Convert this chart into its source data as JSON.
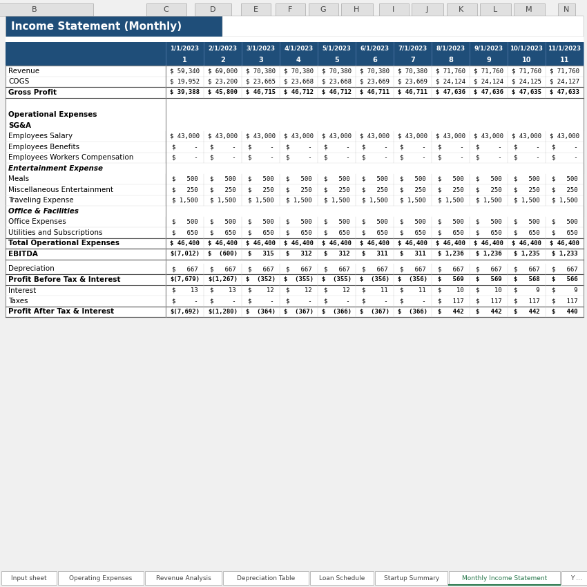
{
  "title": "Income Statement (Monthly)",
  "col_letters": [
    "B",
    "C",
    "D",
    "E",
    "F",
    "G",
    "H",
    "I",
    "J",
    "K",
    "L",
    "M",
    "N"
  ],
  "dates": [
    "1/1/2023",
    "2/1/2023",
    "3/1/2023",
    "4/1/2023",
    "5/1/2023",
    "6/1/2023",
    "7/1/2023",
    "8/1/2023",
    "9/1/2023",
    "10/1/2023",
    "11/1/2023"
  ],
  "period_nums": [
    "1",
    "2",
    "3",
    "4",
    "5",
    "6",
    "7",
    "8",
    "9",
    "10",
    "11"
  ],
  "rows": [
    {
      "label": "Revenue",
      "bold": false,
      "italic": false,
      "type": "data",
      "values": [
        "$ 59,340",
        "$ 69,000",
        "$ 70,380",
        "$ 70,380",
        "$ 70,380",
        "$ 70,380",
        "$ 70,380",
        "$ 71,760",
        "$ 71,760",
        "$ 71,760",
        "$ 71,760"
      ]
    },
    {
      "label": "COGS",
      "bold": false,
      "italic": false,
      "type": "data",
      "values": [
        "$ 19,952",
        "$ 23,200",
        "$ 23,665",
        "$ 23,668",
        "$ 23,668",
        "$ 23,669",
        "$ 23,669",
        "$ 24,124",
        "$ 24,124",
        "$ 24,125",
        "$ 24,127"
      ]
    },
    {
      "label": "Gross Profit",
      "bold": true,
      "italic": false,
      "type": "bold_data",
      "values": [
        "$ 39,388",
        "$ 45,800",
        "$ 46,715",
        "$ 46,712",
        "$ 46,712",
        "$ 46,711",
        "$ 46,711",
        "$ 47,636",
        "$ 47,636",
        "$ 47,635",
        "$ 47,633"
      ]
    },
    {
      "label": "",
      "bold": false,
      "italic": false,
      "type": "blank",
      "values": []
    },
    {
      "label": "",
      "bold": false,
      "italic": false,
      "type": "blank",
      "values": []
    },
    {
      "label": "Operational Expenses",
      "bold": true,
      "italic": false,
      "type": "header",
      "values": []
    },
    {
      "label": "SG&A",
      "bold": true,
      "italic": false,
      "type": "subheader",
      "values": []
    },
    {
      "label": "Employees Salary",
      "bold": false,
      "italic": false,
      "type": "data",
      "values": [
        "$ 43,000",
        "$ 43,000",
        "$ 43,000",
        "$ 43,000",
        "$ 43,000",
        "$ 43,000",
        "$ 43,000",
        "$ 43,000",
        "$ 43,000",
        "$ 43,000",
        "$ 43,000"
      ]
    },
    {
      "label": "Employees Benefits",
      "bold": false,
      "italic": false,
      "type": "data",
      "values": [
        "$     -",
        "$     -",
        "$     -",
        "$     -",
        "$     -",
        "$     -",
        "$     -",
        "$     -",
        "$     -",
        "$     -",
        "$     -"
      ]
    },
    {
      "label": "Employees Workers Compensation",
      "bold": false,
      "italic": false,
      "type": "data",
      "values": [
        "$     -",
        "$     -",
        "$     -",
        "$     -",
        "$     -",
        "$     -",
        "$     -",
        "$     -",
        "$     -",
        "$     -",
        "$     -"
      ]
    },
    {
      "label": "Entertainment Expense",
      "bold": true,
      "italic": true,
      "type": "italic_header",
      "values": []
    },
    {
      "label": "Meals",
      "bold": false,
      "italic": false,
      "type": "data",
      "values": [
        "$   500",
        "$   500",
        "$   500",
        "$   500",
        "$   500",
        "$   500",
        "$   500",
        "$   500",
        "$   500",
        "$   500",
        "$   500"
      ]
    },
    {
      "label": "Miscellaneous Entertainment",
      "bold": false,
      "italic": false,
      "type": "data",
      "values": [
        "$   250",
        "$   250",
        "$   250",
        "$   250",
        "$   250",
        "$   250",
        "$   250",
        "$   250",
        "$   250",
        "$   250",
        "$   250"
      ]
    },
    {
      "label": "Traveling Expense",
      "bold": false,
      "italic": false,
      "type": "data",
      "values": [
        "$ 1,500",
        "$ 1,500",
        "$ 1,500",
        "$ 1,500",
        "$ 1,500",
        "$ 1,500",
        "$ 1,500",
        "$ 1,500",
        "$ 1,500",
        "$ 1,500",
        "$ 1,500"
      ]
    },
    {
      "label": "Office & Facilities",
      "bold": true,
      "italic": true,
      "type": "italic_header",
      "values": []
    },
    {
      "label": "Office Expenses",
      "bold": false,
      "italic": false,
      "type": "data",
      "values": [
        "$   500",
        "$   500",
        "$   500",
        "$   500",
        "$   500",
        "$   500",
        "$   500",
        "$   500",
        "$   500",
        "$   500",
        "$   500"
      ]
    },
    {
      "label": "Utilities and Subscriptions",
      "bold": false,
      "italic": false,
      "type": "data",
      "values": [
        "$   650",
        "$   650",
        "$   650",
        "$   650",
        "$   650",
        "$   650",
        "$   650",
        "$   650",
        "$   650",
        "$   650",
        "$   650"
      ]
    },
    {
      "label": "Total Operational Expenses",
      "bold": true,
      "italic": false,
      "type": "bold_data",
      "values": [
        "$ 46,400",
        "$ 46,400",
        "$ 46,400",
        "$ 46,400",
        "$ 46,400",
        "$ 46,400",
        "$ 46,400",
        "$ 46,400",
        "$ 46,400",
        "$ 46,400",
        "$ 46,400"
      ]
    },
    {
      "label": "EBITDA",
      "bold": true,
      "italic": false,
      "type": "bold_data",
      "values": [
        "$(7,012)",
        "$  (600)",
        "$   315",
        "$   312",
        "$   312",
        "$   311",
        "$   311",
        "$ 1,236",
        "$ 1,236",
        "$ 1,235",
        "$ 1,233"
      ]
    },
    {
      "label": "",
      "bold": false,
      "italic": false,
      "type": "blank_thin",
      "values": []
    },
    {
      "label": "Depreciation",
      "bold": false,
      "italic": false,
      "type": "data",
      "values": [
        "$   667",
        "$   667",
        "$   667",
        "$   667",
        "$   667",
        "$   667",
        "$   667",
        "$   667",
        "$   667",
        "$   667",
        "$   667"
      ]
    },
    {
      "label": "Profit Before Tax & Interest",
      "bold": true,
      "italic": false,
      "type": "bold_data",
      "values": [
        "$(7,679)",
        "$(1,267)",
        "$  (352)",
        "$  (355)",
        "$  (355)",
        "$  (356)",
        "$  (356)",
        "$   569",
        "$   569",
        "$   568",
        "$   566"
      ]
    },
    {
      "label": "Interest",
      "bold": false,
      "italic": false,
      "type": "data",
      "values": [
        "$    13",
        "$    13",
        "$    12",
        "$    12",
        "$    12",
        "$    11",
        "$    11",
        "$    10",
        "$    10",
        "$     9",
        "$     9"
      ]
    },
    {
      "label": "Taxes",
      "bold": false,
      "italic": false,
      "type": "data",
      "values": [
        "$     -",
        "$     -",
        "$     -",
        "$     -",
        "$     -",
        "$     -",
        "$     -",
        "$   117",
        "$   117",
        "$   117",
        "$   117"
      ]
    },
    {
      "label": "Profit After Tax & Interest",
      "bold": true,
      "italic": false,
      "type": "bold_data",
      "values": [
        "$(7,692)",
        "$(1,280)",
        "$  (364)",
        "$  (367)",
        "$  (366)",
        "$  (367)",
        "$  (366)",
        "$   442",
        "$   442",
        "$   442",
        "$   440"
      ]
    }
  ],
  "title_bg": "#1F4E79",
  "title_text": "#FFFFFF",
  "col_header_bg": "#1F4E79",
  "col_header_text": "#FFFFFF",
  "active_tab_text": "#217346",
  "tab_labels": [
    "Input sheet",
    "Operating Expenses",
    "Revenue Analysis",
    "Depreciation Table",
    "Loan Schedule",
    "Startup Summary",
    "Monthly Income Statement",
    "Y ..."
  ]
}
